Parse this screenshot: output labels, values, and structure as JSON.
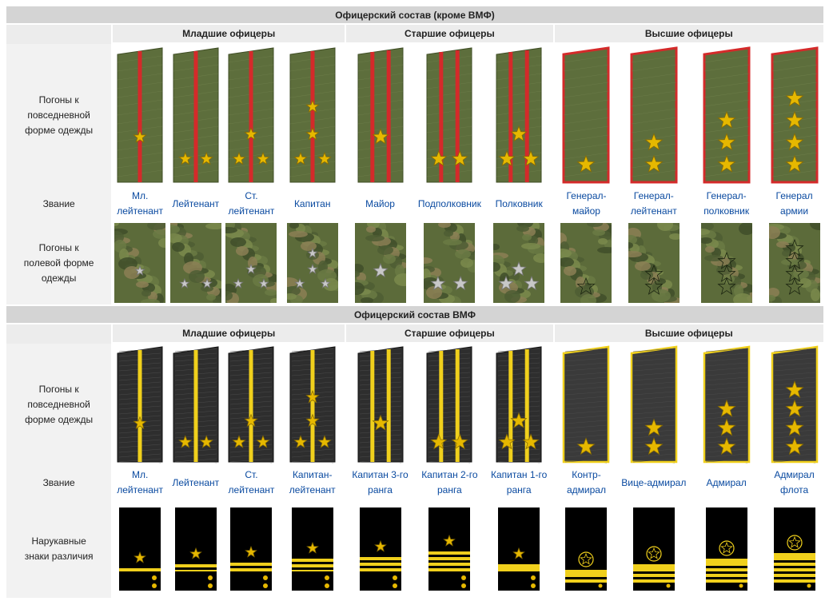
{
  "army": {
    "title": "Офицерский состав (кроме ВМФ)",
    "groups": [
      "Младшие офицеры",
      "Старшие офицеры",
      "Высшие офицеры"
    ],
    "row_daily_label": "Погоны к повседневной форме одежды",
    "row_rank_label": "Звание",
    "row_field_label": "Погоны к полевой форме одежды",
    "ranks": [
      "Мл. лейтенант",
      "Лейтенант",
      "Ст. лейтенант",
      "Капитан",
      "Майор",
      "Подполковник",
      "Полковник",
      "Генерал-майор",
      "Генерал-лейтенант",
      "Генерал-полковник",
      "Генерал армии"
    ]
  },
  "navy": {
    "title": "Офицерский состав ВМФ",
    "groups": [
      "Младшие офицеры",
      "Старшие офицеры",
      "Высшие офицеры"
    ],
    "row_daily_label": "Погоны к повседневной форме одежды",
    "row_rank_label": "Звание",
    "row_sleeve_label": "Нарукавные знаки различия",
    "ranks": [
      "Мл. лейтенант",
      "Лейтенант",
      "Ст. лейтенант",
      "Капитан-лейтенант",
      "Капитан 3-го ранга",
      "Капитан 2-го ранга",
      "Капитан 1-го ранга",
      "Контр-адмирал",
      "Вице-адмирал",
      "Адмирал",
      "Адмирал флота"
    ]
  },
  "colors": {
    "army_cloth": "#5d6e3c",
    "army_stripe": "#d42a2a",
    "navy_cloth": "#2e2e2e",
    "navy_stripe": "#f0d01c",
    "star_gold": "#e6b800",
    "star_silver": "#c8c8c8",
    "sleeve_bg": "#000000"
  },
  "insignia": {
    "army_daily": [
      {
        "stars": 1,
        "layout": "center",
        "stripes": 1
      },
      {
        "stars": 2,
        "layout": "pair",
        "stripes": 1
      },
      {
        "stars": 3,
        "layout": "tri",
        "stripes": 1
      },
      {
        "stars": 4,
        "layout": "cap",
        "stripes": 1
      },
      {
        "stars": 1,
        "layout": "center",
        "stripes": 2
      },
      {
        "stars": 2,
        "layout": "pair",
        "stripes": 2
      },
      {
        "stars": 3,
        "layout": "tri",
        "stripes": 2
      },
      {
        "stars": 1,
        "layout": "col",
        "stripes": 0
      },
      {
        "stars": 2,
        "layout": "col",
        "stripes": 0
      },
      {
        "stars": 3,
        "layout": "col",
        "stripes": 0
      },
      {
        "stars": 4,
        "layout": "col",
        "stripes": 0
      }
    ],
    "navy_sleeve": [
      {
        "stripes": [
          "thick"
        ]
      },
      {
        "stripes": [
          "thick",
          "thin"
        ]
      },
      {
        "stripes": [
          "thick",
          "thick"
        ]
      },
      {
        "stripes": [
          "thick",
          "thick",
          "thin"
        ]
      },
      {
        "stripes": [
          "thick",
          "thick",
          "thick"
        ]
      },
      {
        "stripes": [
          "thick",
          "thick",
          "thick",
          "thick"
        ]
      },
      {
        "stripes": [
          "wide"
        ]
      },
      {
        "stripes": [
          "wide",
          "thick"
        ]
      },
      {
        "stripes": [
          "wide",
          "thick",
          "thick"
        ]
      },
      {
        "stripes": [
          "wide",
          "thick",
          "thick",
          "thick"
        ]
      },
      {
        "stripes": [
          "wide",
          "thick",
          "thick",
          "thick",
          "thick"
        ]
      }
    ]
  }
}
